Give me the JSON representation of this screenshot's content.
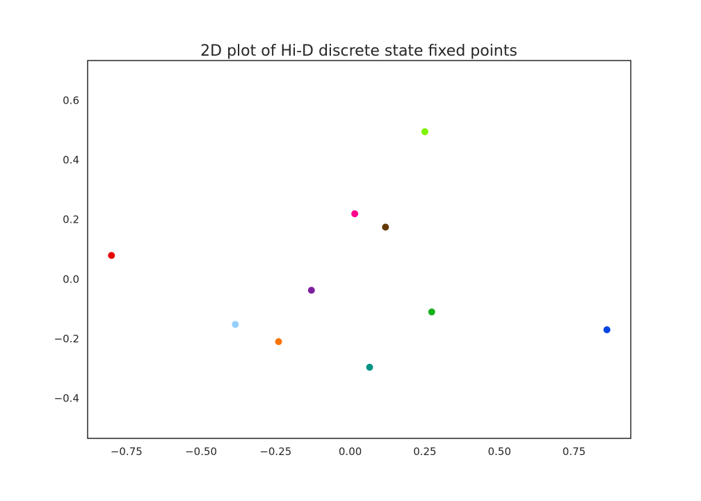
{
  "chart_data": {
    "type": "scatter",
    "title": "2D plot of Hi-D discrete state fixed points",
    "xlabel": "",
    "ylabel": "",
    "xlim": [
      -0.88,
      0.94
    ],
    "ylim": [
      -0.535,
      0.735
    ],
    "grid": false,
    "xticks": [
      -0.75,
      -0.5,
      -0.25,
      0.0,
      0.25,
      0.5,
      0.75
    ],
    "xtick_labels": [
      "−0.75",
      "−0.50",
      "−0.25",
      "0.00",
      "0.25",
      "0.50",
      "0.75"
    ],
    "yticks": [
      0.6,
      0.4,
      0.2,
      0.0,
      -0.2,
      -0.4
    ],
    "ytick_labels": [
      "0.6",
      "0.4",
      "0.2",
      "0.0",
      "−0.2",
      "−0.4"
    ],
    "points": [
      {
        "x": -0.8,
        "y": 0.08,
        "color": "#e50000"
      },
      {
        "x": -0.385,
        "y": -0.152,
        "color": "#95d0fc"
      },
      {
        "x": -0.24,
        "y": -0.21,
        "color": "#f97306"
      },
      {
        "x": -0.13,
        "y": -0.037,
        "color": "#7e1e9c"
      },
      {
        "x": 0.015,
        "y": 0.22,
        "color": "#ff028d"
      },
      {
        "x": 0.065,
        "y": -0.296,
        "color": "#029386"
      },
      {
        "x": 0.118,
        "y": 0.175,
        "color": "#653700"
      },
      {
        "x": 0.25,
        "y": 0.496,
        "color": "#7ef400"
      },
      {
        "x": 0.273,
        "y": -0.11,
        "color": "#15b01a"
      },
      {
        "x": 0.86,
        "y": -0.17,
        "color": "#0343df"
      }
    ]
  }
}
